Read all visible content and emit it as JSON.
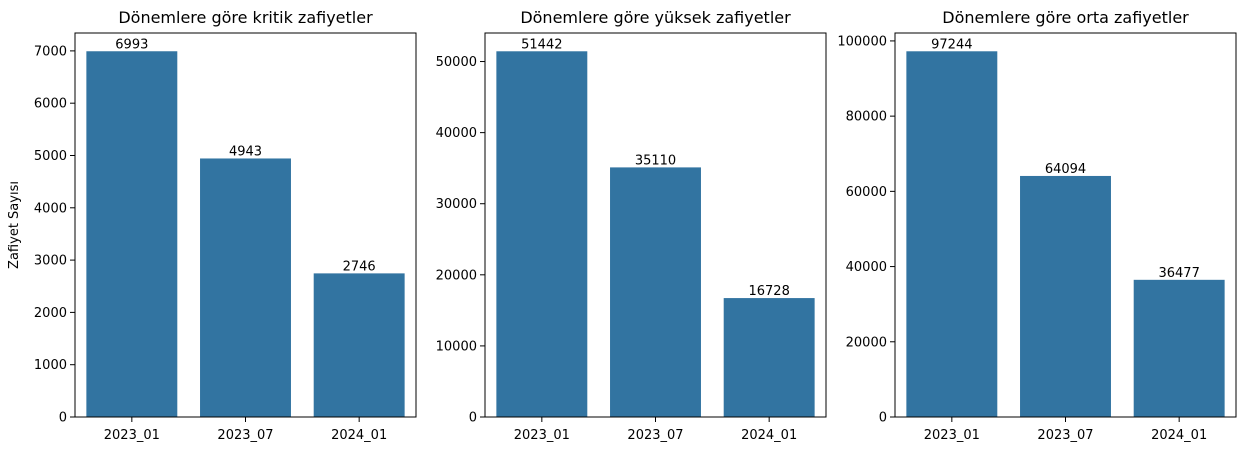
{
  "chart_data": [
    {
      "type": "bar",
      "title": "Dönemlere göre kritik zafiyetler",
      "xlabel": "",
      "ylabel": "Zafiyet Sayısı",
      "categories": [
        "2023_01",
        "2023_07",
        "2024_01"
      ],
      "values": [
        6993,
        4943,
        2746
      ],
      "data_labels": [
        "6993",
        "4943",
        "2746"
      ],
      "ylim": [
        0,
        7342
      ],
      "yticks": [
        0,
        1000,
        2000,
        3000,
        4000,
        5000,
        6000,
        7000
      ],
      "grid": false,
      "bar_color": "#3274a1"
    },
    {
      "type": "bar",
      "title": "Dönemlere göre yüksek zafiyetler",
      "xlabel": "",
      "ylabel": "",
      "categories": [
        "2023_01",
        "2023_07",
        "2024_01"
      ],
      "values": [
        51442,
        35110,
        16728
      ],
      "data_labels": [
        "51442",
        "35110",
        "16728"
      ],
      "ylim": [
        0,
        54014
      ],
      "yticks": [
        0,
        10000,
        20000,
        30000,
        40000,
        50000
      ],
      "grid": false,
      "bar_color": "#3274a1"
    },
    {
      "type": "bar",
      "title": "Dönemlere göre orta zafiyetler",
      "xlabel": "",
      "ylabel": "",
      "categories": [
        "2023_01",
        "2023_07",
        "2024_01"
      ],
      "values": [
        97244,
        64094,
        36477
      ],
      "data_labels": [
        "97244",
        "64094",
        "36477"
      ],
      "ylim": [
        0,
        102106
      ],
      "yticks": [
        0,
        20000,
        40000,
        60000,
        80000,
        100000
      ],
      "grid": false,
      "bar_color": "#3274a1"
    }
  ]
}
